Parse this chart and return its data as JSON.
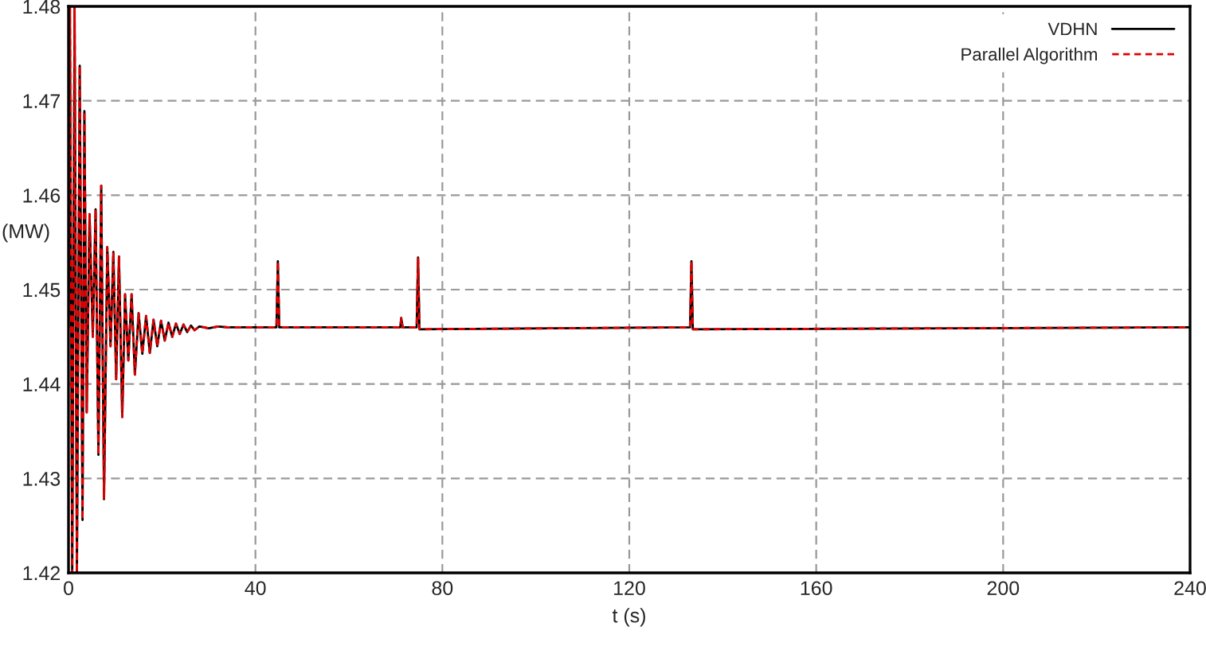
{
  "chart_data": {
    "type": "line",
    "xlabel": "t (s)",
    "ylabel": "(MW)",
    "xlim": [
      0,
      240
    ],
    "xticks": [
      0,
      40,
      80,
      120,
      160,
      200,
      240
    ],
    "ylim": [
      1.42,
      1.48
    ],
    "yticks": [
      1.42,
      1.43,
      1.44,
      1.45,
      1.46,
      1.47,
      1.48
    ],
    "grid": true,
    "legend": "top right",
    "marker": "none",
    "x": [
      0,
      0.3,
      0.8,
      1.3,
      1.8,
      2.4,
      3.0,
      3.4,
      3.9,
      4.5,
      5.2,
      5.8,
      6.4,
      7.0,
      7.6,
      8.3,
      9.0,
      9.6,
      10.2,
      10.8,
      11.5,
      12.1,
      12.8,
      13.5,
      14.2,
      15.0,
      15.8,
      16.6,
      17.4,
      18.2,
      19.0,
      19.8,
      20.6,
      21.4,
      22.2,
      23.0,
      23.8,
      24.6,
      25.4,
      26.2,
      27.0,
      28,
      30,
      32,
      34,
      44.5,
      44.8,
      45.1,
      71,
      71.2,
      71.5,
      74.5,
      74.8,
      75.1,
      133,
      133.3,
      133.6,
      240
    ],
    "series": [
      {
        "name": "VDHN",
        "color": "#000000",
        "line_style": "solid",
        "values": [
          1.446,
          1.48,
          1.42,
          1.48,
          1.42,
          1.4737,
          1.4256,
          1.4689,
          1.437,
          1.458,
          1.445,
          1.4585,
          1.4325,
          1.461,
          1.4278,
          1.4545,
          1.444,
          1.454,
          1.4405,
          1.4535,
          1.4365,
          1.4495,
          1.4425,
          1.4495,
          1.441,
          1.4475,
          1.4432,
          1.4472,
          1.4433,
          1.4468,
          1.444,
          1.4467,
          1.4446,
          1.4465,
          1.445,
          1.4464,
          1.4453,
          1.4463,
          1.4455,
          1.4462,
          1.4457,
          1.4461,
          1.4459,
          1.4461,
          1.446,
          1.446,
          1.453,
          1.446,
          1.446,
          1.447,
          1.446,
          1.446,
          1.4534,
          1.4458,
          1.446,
          1.453,
          1.4458,
          1.446
        ]
      },
      {
        "name": "Parallel Algorithm",
        "color": "#e00000",
        "line_style": "dashed",
        "values": [
          1.446,
          1.48,
          1.42,
          1.48,
          1.42,
          1.4737,
          1.4256,
          1.4689,
          1.437,
          1.458,
          1.445,
          1.4585,
          1.4325,
          1.461,
          1.4278,
          1.4545,
          1.444,
          1.454,
          1.4405,
          1.4535,
          1.4365,
          1.4495,
          1.4425,
          1.4495,
          1.441,
          1.4475,
          1.4432,
          1.4472,
          1.4433,
          1.4468,
          1.444,
          1.4467,
          1.4446,
          1.4465,
          1.445,
          1.4464,
          1.4453,
          1.4463,
          1.4455,
          1.4462,
          1.4457,
          1.4461,
          1.4459,
          1.4461,
          1.446,
          1.446,
          1.453,
          1.446,
          1.446,
          1.447,
          1.446,
          1.446,
          1.4534,
          1.4458,
          1.446,
          1.453,
          1.4458,
          1.446
        ]
      }
    ]
  }
}
